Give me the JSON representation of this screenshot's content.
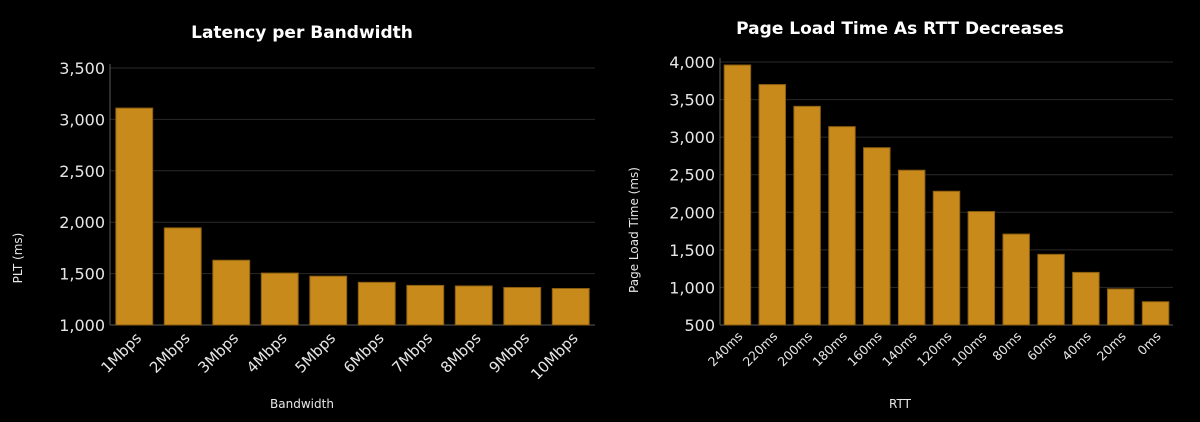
{
  "colors": {
    "background": "#000000",
    "bar": "#c98a1c",
    "text": "#e6e6e6",
    "title": "#ffffff"
  },
  "chart_data": [
    {
      "type": "bar",
      "title": "Latency per Bandwidth",
      "xlabel": "Bandwidth",
      "ylabel": "PLT (ms)",
      "ylim": [
        1000,
        3500
      ],
      "yticks": [
        1000,
        1500,
        2000,
        2500,
        3000,
        3500
      ],
      "ytick_labels": [
        "1,000",
        "1,500",
        "2,000",
        "2,500",
        "3,000",
        "3,500"
      ],
      "grid": true,
      "categories": [
        "1Mbps",
        "2Mbps",
        "3Mbps",
        "4Mbps",
        "5Mbps",
        "6Mbps",
        "7Mbps",
        "8Mbps",
        "9Mbps",
        "10Mbps"
      ],
      "values": [
        3110,
        1945,
        1630,
        1505,
        1475,
        1415,
        1385,
        1380,
        1365,
        1355
      ]
    },
    {
      "type": "bar",
      "title": "Page Load Time As RTT Decreases",
      "xlabel": "RTT",
      "ylabel": "Page Load Time (ms)",
      "ylim": [
        500,
        4000
      ],
      "yticks": [
        500,
        1000,
        1500,
        2000,
        2500,
        3000,
        3500,
        4000
      ],
      "ytick_labels": [
        "500",
        "1,000",
        "1,500",
        "2,000",
        "2,500",
        "3,000",
        "3,500",
        "4,000"
      ],
      "grid": true,
      "categories": [
        "240ms",
        "220ms",
        "200ms",
        "180ms",
        "160ms",
        "140ms",
        "120ms",
        "100ms",
        "80ms",
        "60ms",
        "40ms",
        "20ms",
        "0ms"
      ],
      "values": [
        3960,
        3700,
        3410,
        3140,
        2860,
        2560,
        2280,
        2010,
        1710,
        1440,
        1200,
        980,
        810
      ]
    }
  ]
}
